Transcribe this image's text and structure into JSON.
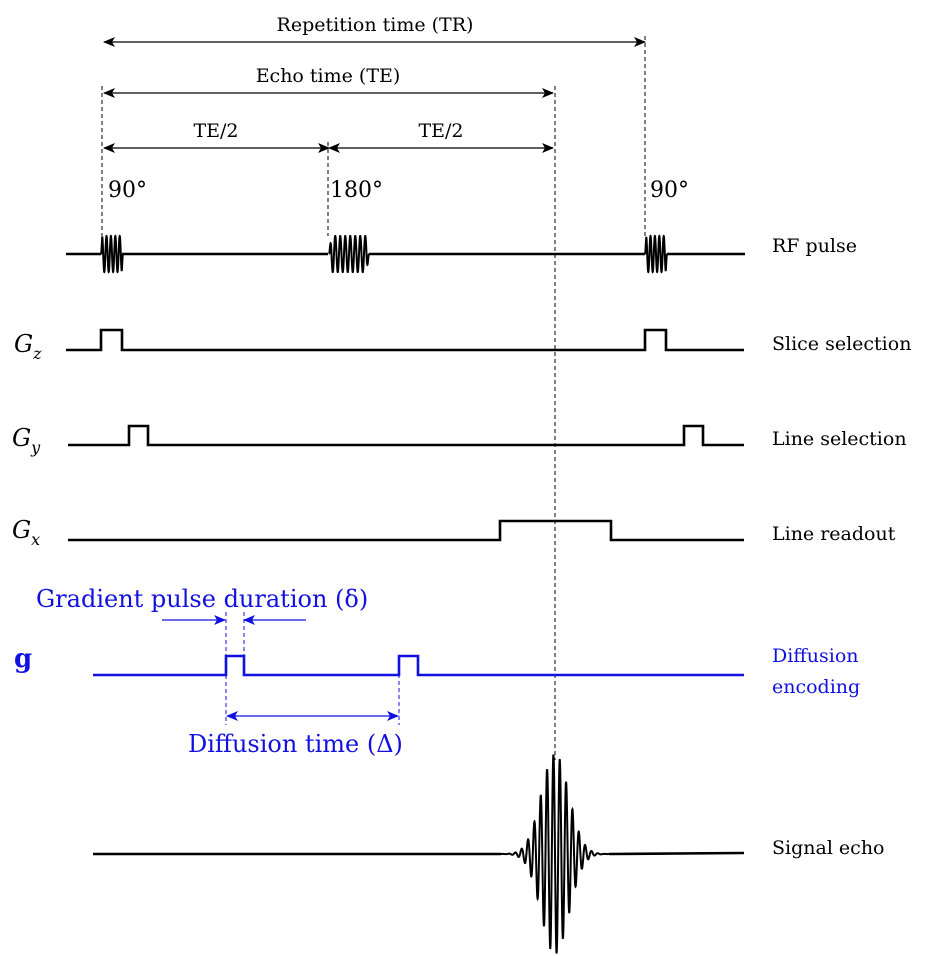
{
  "timing": {
    "tr_label": "Repetition time (TR)",
    "te_label": "Echo time (TE)",
    "te_half_left": "TE/2",
    "te_half_right": "TE/2",
    "pulse_90_first": "90°",
    "pulse_180": "180°",
    "pulse_90_second": "90°"
  },
  "rows": {
    "rf": {
      "label": "RF pulse"
    },
    "gz": {
      "symbol": "G",
      "sub": "z",
      "label": "Slice selection"
    },
    "gy": {
      "symbol": "G",
      "sub": "y",
      "label": "Line selection"
    },
    "gx": {
      "symbol": "G",
      "sub": "x",
      "label": "Line readout"
    },
    "g": {
      "symbol": "g",
      "label_line1": "Diffusion",
      "label_line2": "encoding"
    },
    "echo": {
      "label": "Signal echo"
    }
  },
  "diffusion": {
    "pulse_duration_label": "Gradient pulse duration (δ)",
    "diffusion_time_label": "Diffusion time (Δ)"
  },
  "colors": {
    "main": "#000000",
    "diffusion": "#1010e0"
  }
}
